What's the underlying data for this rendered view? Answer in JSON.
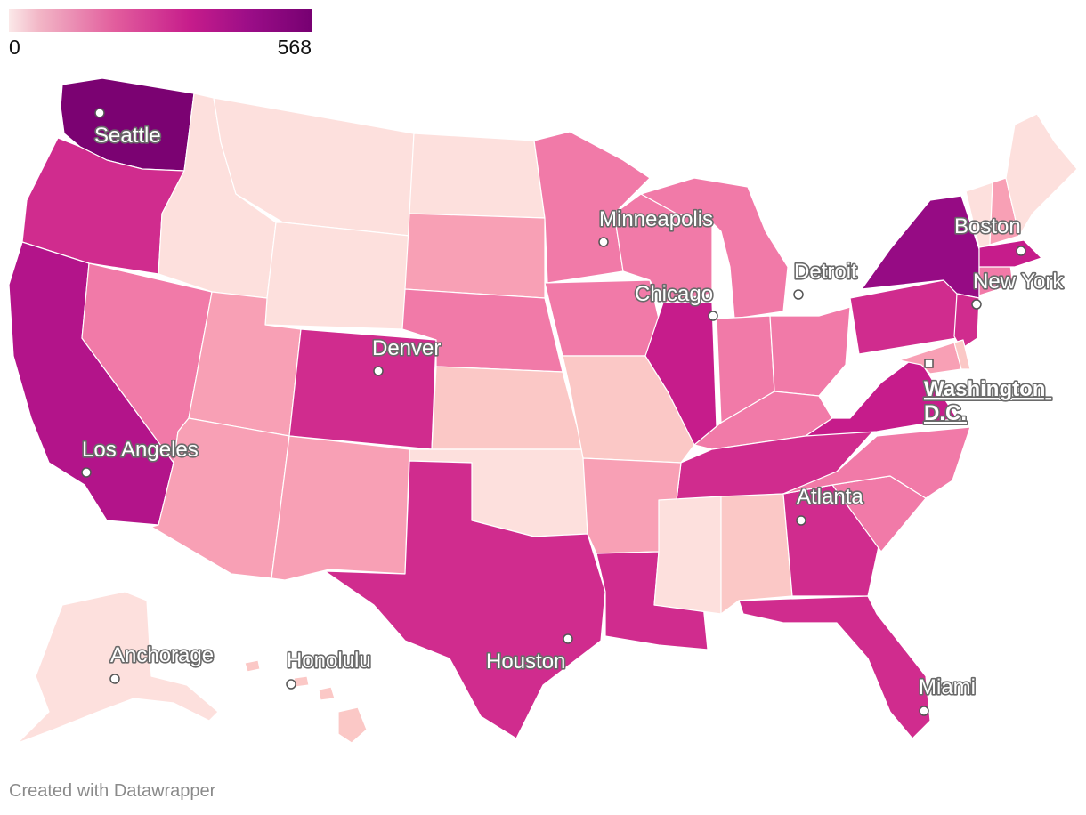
{
  "legend": {
    "min": "0",
    "max": "568"
  },
  "scale_colors": {
    "lowest": "#fde0dd",
    "low": "#fbc8c6",
    "low_mid": "#f8a0b5",
    "mid": "#f17aa8",
    "high": "#d02c8e",
    "higher": "#b3148a",
    "highest": "#7b0272"
  },
  "cities": [
    {
      "name": "Seattle"
    },
    {
      "name": "Minneapolis"
    },
    {
      "name": "Boston"
    },
    {
      "name": "Detroit"
    },
    {
      "name": "New York"
    },
    {
      "name": "Chicago"
    },
    {
      "name": "Denver"
    },
    {
      "name": "Washington D.C."
    },
    {
      "name": "Los Angeles"
    },
    {
      "name": "Atlanta"
    },
    {
      "name": "Anchorage"
    },
    {
      "name": "Honolulu"
    },
    {
      "name": "Houston"
    },
    {
      "name": "Miami"
    }
  ],
  "credit": "Created with Datawrapper"
}
